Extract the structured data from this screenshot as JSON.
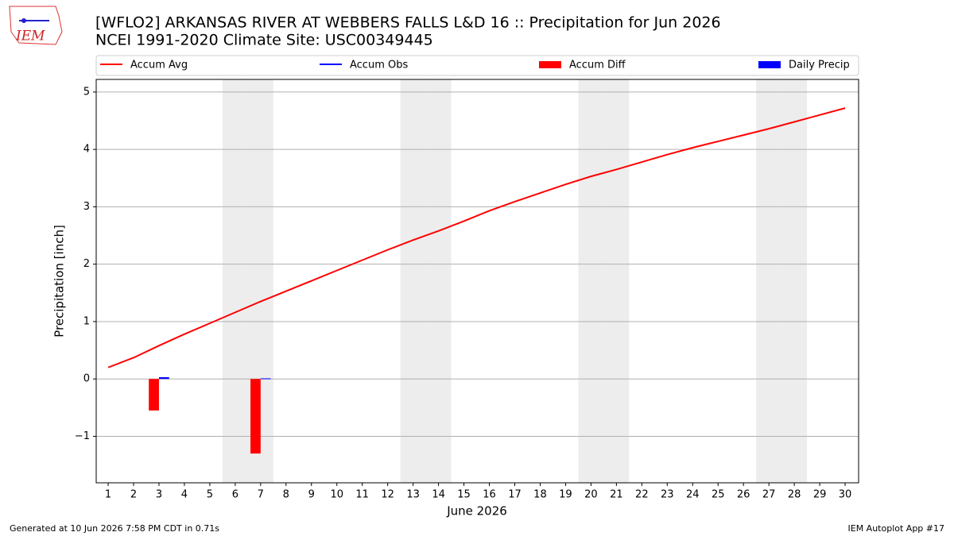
{
  "chart_data": {
    "type": "line",
    "title": "[WFLO2] ARKANSAS RIVER  AT WEBBERS FALLS L&D 16 :: Precipitation for Jun 2026",
    "subtitle": "NCEI 1991-2020 Climate Site: USC00349445",
    "logo_text": "IEM",
    "x_label": "June 2026",
    "y_label": "Precipitation [inch]",
    "footer_left": "Generated at 10 Jun 2026 7:58 PM CDT in 0.71s",
    "footer_right": "IEM Autoplot App #17",
    "x": [
      1,
      2,
      3,
      4,
      5,
      6,
      7,
      8,
      9,
      10,
      11,
      12,
      13,
      14,
      15,
      16,
      17,
      18,
      19,
      20,
      21,
      22,
      23,
      24,
      25,
      26,
      27,
      28,
      29,
      30
    ],
    "xlim": [
      0.53,
      30.53
    ],
    "xticks": [
      1,
      2,
      3,
      4,
      5,
      6,
      7,
      8,
      9,
      10,
      11,
      12,
      13,
      14,
      15,
      16,
      17,
      18,
      19,
      20,
      21,
      22,
      23,
      24,
      25,
      26,
      27,
      28,
      29,
      30
    ],
    "ylim": [
      -1.81,
      5.22
    ],
    "yticks": [
      {
        "value": -1,
        "label": "−1"
      },
      0,
      1,
      2,
      3,
      4,
      5
    ],
    "grid": true,
    "shaded_days": [
      6,
      7,
      13,
      14,
      20,
      21,
      27,
      28
    ],
    "series": [
      {
        "name": "Accum Avg",
        "kind": "line",
        "color": "#ff0000",
        "values": [
          0.2,
          0.37,
          0.58,
          0.78,
          0.97,
          1.16,
          1.35,
          1.53,
          1.71,
          1.89,
          2.07,
          2.25,
          2.42,
          2.58,
          2.75,
          2.93,
          3.09,
          3.24,
          3.39,
          3.53,
          3.65,
          3.78,
          3.91,
          4.03,
          4.14,
          4.25,
          4.36,
          4.48,
          4.6,
          4.72
        ]
      },
      {
        "name": "Accum Obs",
        "kind": "line",
        "color": "#0000ff",
        "values": [
          null,
          null,
          null,
          null,
          null,
          null,
          null,
          null,
          null,
          null,
          null,
          null,
          null,
          null,
          null,
          null,
          null,
          null,
          null,
          null,
          null,
          null,
          null,
          null,
          null,
          null,
          null,
          null,
          null,
          null
        ]
      },
      {
        "name": "Accum Diff",
        "kind": "bar",
        "color": "#ff0000",
        "offset": -0.2,
        "values": [
          null,
          null,
          -0.55,
          null,
          null,
          null,
          -1.3,
          null,
          null,
          null,
          null,
          null,
          null,
          null,
          null,
          null,
          null,
          null,
          null,
          null,
          null,
          null,
          null,
          null,
          null,
          null,
          null,
          null,
          null,
          null
        ]
      },
      {
        "name": "Daily Precip",
        "kind": "bar",
        "color": "#0000ff",
        "offset": 0.2,
        "values": [
          null,
          null,
          0.03,
          null,
          null,
          null,
          0.01,
          null,
          null,
          null,
          null,
          null,
          null,
          null,
          null,
          null,
          null,
          null,
          null,
          null,
          null,
          null,
          null,
          null,
          null,
          null,
          null,
          null,
          null,
          null
        ]
      }
    ]
  }
}
